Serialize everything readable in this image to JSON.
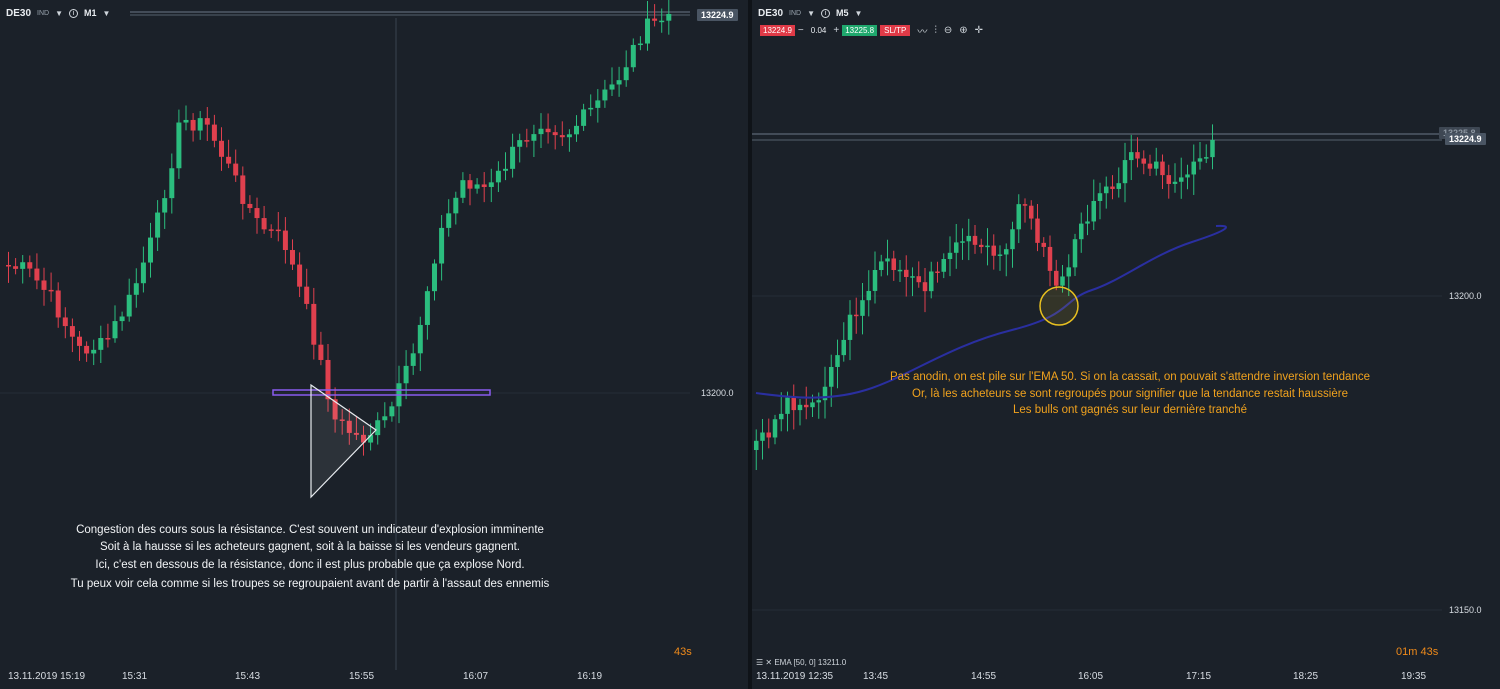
{
  "left": {
    "symbol": "DE30",
    "symbol_sub": "IND",
    "timeframe": "M1",
    "current_price": "13224.9",
    "price_axis": [
      "13200.0"
    ],
    "time_axis": [
      "13.11.2019 15:19",
      "15:31",
      "15:43",
      "15:55",
      "16:07",
      "16:19"
    ],
    "note_lines": [
      "Congestion des cours sous la résistance. C'est souvent un indicateur d'explosion imminente",
      "Soit à la hausse si les acheteurs gagnent, soit à la baisse si les vendeurs gagnent.",
      "Ici, c'est en dessous de la résistance, donc il est plus probable que ça explose Nord.",
      "Tu peux voir cela comme si les troupes se regroupaient avant de partir à l'assaut des ennemis"
    ],
    "timer": "43s"
  },
  "right": {
    "symbol": "DE30",
    "symbol_sub": "IND",
    "timeframe": "M5",
    "sell_price": "13224.9",
    "spread": "0.04",
    "buy_price": "13225.8",
    "sltp_label": "SL/TP",
    "current_price": "13224.9",
    "hidden_price": "13225.8",
    "price_axis": [
      "13200.0",
      "13150.0"
    ],
    "time_axis": [
      "13.11.2019 12:35",
      "13:45",
      "14:55",
      "16:05",
      "17:15",
      "18:25",
      "19:35"
    ],
    "ema_legend": "EMA [50, 0]  13211.0",
    "note_lines": [
      "Pas anodin, on est pile sur l'EMA 50. Si on la cassait, on pouvait s'attendre inversion tendance",
      "Or, là les acheteurs se sont regroupés pour signifier que la tendance restait haussière",
      "Les bulls ont gagnés sur leur dernière tranché"
    ],
    "timer_min": "01m",
    "timer_sec": "43s"
  },
  "colors": {
    "background": "#1b2129",
    "bull": "#2bbd7e",
    "bear": "#e0404e",
    "ema": "#2a2fa0",
    "resistance": "#8a5cf0",
    "highlight_circle": "#e8c020",
    "annotation_white": "#f2f4f6",
    "annotation_yellow": "#f0a21e"
  },
  "icons": [
    "info-icon",
    "chevron-down-icon",
    "line-chart-icon",
    "indicators-icon",
    "zoom-out-icon",
    "zoom-in-icon",
    "crosshair-icon"
  ]
}
